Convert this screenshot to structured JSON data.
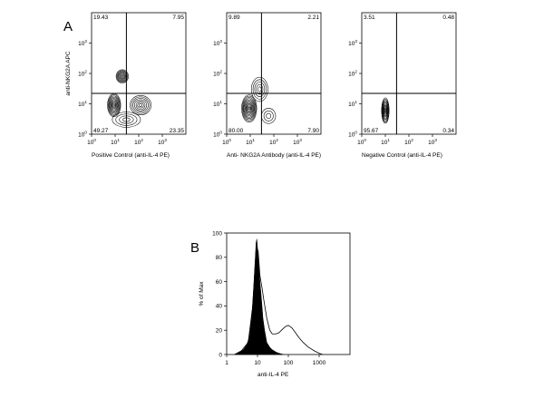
{
  "panels": {
    "A_label": "A",
    "B_label": "B"
  },
  "chart_data": [
    {
      "type": "contour",
      "panel": "A",
      "xlabel": "Positive Control (anti-IL-4 PE)",
      "ylabel": "anti-NKG2A APC",
      "x_scale": "log",
      "y_scale": "log",
      "xlim": [
        1,
        10000
      ],
      "ylim": [
        1,
        10000
      ],
      "x_ticks": [
        1,
        10,
        100,
        1000
      ],
      "y_ticks": [
        1,
        10,
        100,
        1000
      ],
      "gate": {
        "x": 30,
        "y": 22
      },
      "quadrants": {
        "upper_left": "19.43",
        "upper_right": "7.95",
        "lower_left": "49.27",
        "lower_right": "23.35"
      },
      "populations": [
        {
          "x": 9,
          "y": 9,
          "spread_x": 0.28,
          "spread_y": 0.38,
          "rings": 10
        },
        {
          "x": 20,
          "y": 80,
          "spread_x": 0.26,
          "spread_y": 0.22,
          "rings": 8
        },
        {
          "x": 120,
          "y": 9,
          "spread_x": 0.45,
          "spread_y": 0.32,
          "rings": 7
        },
        {
          "x": 30,
          "y": 3,
          "spread_x": 0.6,
          "spread_y": 0.25,
          "rings": 4
        }
      ]
    },
    {
      "type": "contour",
      "panel": "A",
      "xlabel": "Anti- NKG2A Antibody (anti-IL-4 PE)",
      "ylabel": "",
      "x_scale": "log",
      "y_scale": "log",
      "xlim": [
        1,
        10000
      ],
      "ylim": [
        1,
        10000
      ],
      "x_ticks": [
        1,
        10,
        100,
        1000
      ],
      "y_ticks": [
        1,
        10,
        100,
        1000
      ],
      "gate": {
        "x": 30,
        "y": 22
      },
      "quadrants": {
        "upper_left": "9.89",
        "upper_right": "2.21",
        "lower_left": "80.00",
        "lower_right": "7.90"
      },
      "populations": [
        {
          "x": 9,
          "y": 7,
          "spread_x": 0.32,
          "spread_y": 0.45,
          "rings": 11
        },
        {
          "x": 25,
          "y": 30,
          "spread_x": 0.35,
          "spread_y": 0.4,
          "rings": 5
        },
        {
          "x": 60,
          "y": 4,
          "spread_x": 0.3,
          "spread_y": 0.25,
          "rings": 3
        }
      ]
    },
    {
      "type": "contour",
      "panel": "A",
      "xlabel": "Negative Control (anti-IL-4 PE)",
      "ylabel": "",
      "x_scale": "log",
      "y_scale": "log",
      "xlim": [
        1,
        10000
      ],
      "ylim": [
        1,
        10000
      ],
      "x_ticks": [
        1,
        10,
        100,
        1000
      ],
      "y_ticks": [
        1,
        10,
        100,
        1000
      ],
      "gate": {
        "x": 30,
        "y": 22
      },
      "quadrants": {
        "upper_left": "3.51",
        "upper_right": "0.48",
        "lower_left": "95.67",
        "lower_right": "0.34"
      },
      "populations": [
        {
          "x": 10,
          "y": 6,
          "spread_x": 0.16,
          "spread_y": 0.42,
          "rings": 10
        }
      ]
    },
    {
      "type": "histogram",
      "panel": "B",
      "xlabel": "anti-IL-4 PE",
      "ylabel": "% of Max",
      "x_scale": "log",
      "xlim": [
        1,
        10000
      ],
      "ylim": [
        0,
        100
      ],
      "x_ticks": [
        "1",
        "10",
        "100",
        "1000"
      ],
      "y_ticks": [
        "0",
        "20",
        "40",
        "60",
        "80",
        "100"
      ],
      "series": [
        {
          "style": "filled",
          "x": [
            1.8,
            2.5,
            3.5,
            4.5,
            5.5,
            6.5,
            7.5,
            8.5,
            9.0,
            9.5,
            10,
            11,
            12,
            13,
            14,
            15,
            17,
            20,
            25,
            30,
            40,
            50,
            70
          ],
          "y": [
            0,
            2,
            4,
            8,
            15,
            30,
            55,
            80,
            92,
            95,
            88,
            75,
            60,
            50,
            40,
            30,
            20,
            10,
            6,
            4,
            2,
            1,
            0
          ]
        },
        {
          "style": "outline",
          "x": [
            1.8,
            3,
            5,
            7,
            8.5,
            9.5,
            10.5,
            12,
            14,
            16,
            20,
            25,
            30,
            40,
            50,
            60,
            80,
            100,
            130,
            170,
            220,
            300,
            450,
            700,
            1000,
            1300
          ],
          "y": [
            0,
            3,
            10,
            40,
            75,
            88,
            85,
            65,
            55,
            45,
            30,
            20,
            17,
            17,
            18,
            20,
            23,
            24,
            22,
            18,
            14,
            10,
            6,
            3,
            1,
            0
          ]
        }
      ]
    }
  ]
}
